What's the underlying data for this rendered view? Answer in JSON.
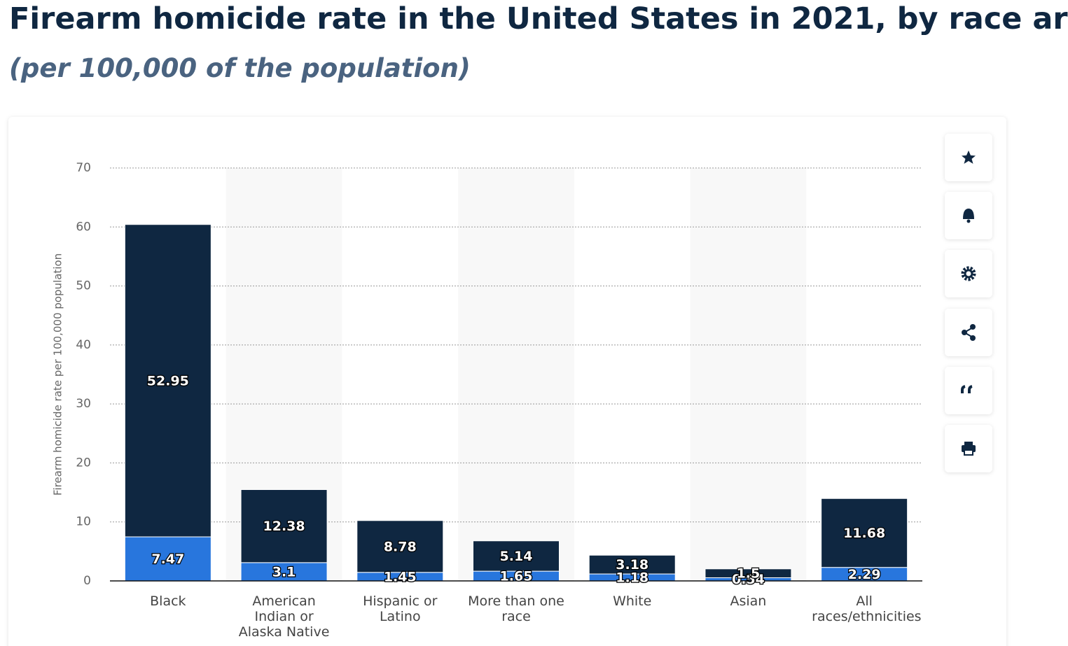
{
  "title": "Firearm homicide rate in the United States in 2021, by race ar",
  "subtitle": "(per 100,000 of the population)",
  "chart_data": {
    "type": "bar",
    "stacked": true,
    "y_label": "Firearm homicide rate per 100,000 population",
    "categories": [
      "Black",
      "American Indian or Alaska Native",
      "Hispanic or Latino",
      "More than one race",
      "White",
      "Asian",
      "All races/ethnicities"
    ],
    "series": [
      {
        "color": "#2876dd",
        "values": [
          7.47,
          3.1,
          1.45,
          1.65,
          1.18,
          0.54,
          2.29
        ]
      },
      {
        "color": "#0f2741",
        "values": [
          52.95,
          12.38,
          8.78,
          5.14,
          3.18,
          1.5,
          11.68
        ]
      }
    ],
    "ylim": [
      0,
      70
    ],
    "yticks": [
      0,
      10,
      20,
      30,
      40,
      50,
      60,
      70
    ],
    "grid": true
  }
}
